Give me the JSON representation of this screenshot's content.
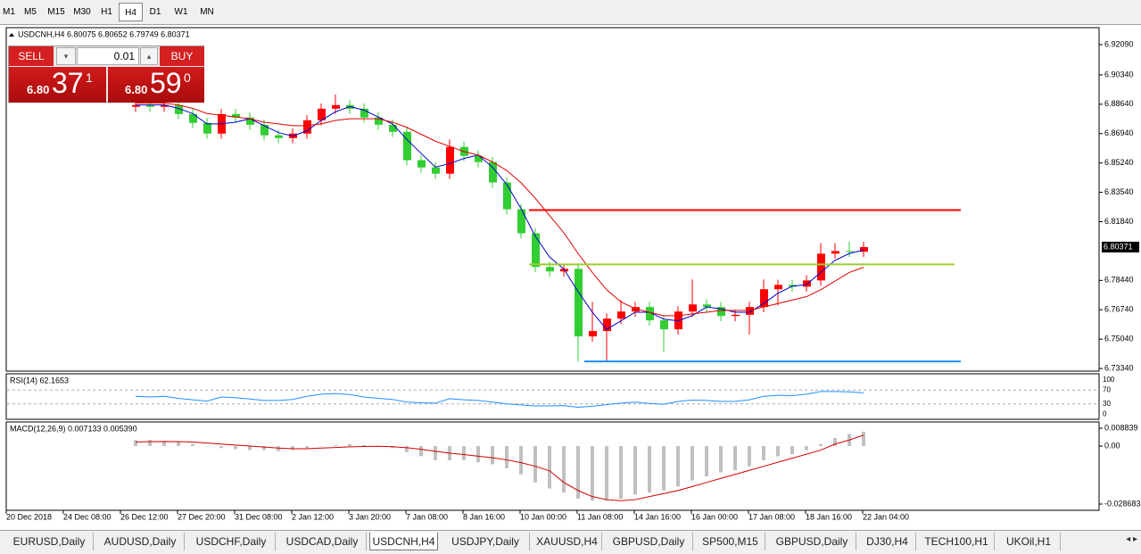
{
  "toolbar": {
    "timeframes": [
      "M1",
      "M5",
      "M15",
      "M30",
      "H1",
      "H4",
      "D1",
      "W1",
      "MN"
    ]
  },
  "trade_panel": {
    "sell": "SELL",
    "buy": "BUY",
    "lot": "0.01",
    "bid": {
      "big": "6.80",
      "pips": "37",
      "frac": "1"
    },
    "ask": {
      "big": "6.80",
      "pips": "59",
      "frac": "0"
    }
  },
  "header": "USDCNH,H4  6.80075 6.80652 6.79749 6.80371",
  "time_labels": [
    "20 Dec 2018",
    "24 Dec 08:00",
    "26 Dec 12:00",
    "27 Dec 20:00",
    "31 Dec 08:00",
    "2 Jan 12:00",
    "3 Jan 20:00",
    "7 Jan 08:00",
    "8 Jan 16:00",
    "10 Jan 00:00",
    "11 Jan 08:00",
    "14 Jan 16:00",
    "16 Jan 00:00",
    "17 Jan 08:00",
    "18 Jan 16:00",
    "22 Jan 04:00"
  ],
  "tabs": [
    "EURUSD,Daily",
    "AUDUSD,Daily",
    "USDCHF,Daily",
    "USDCAD,Daily",
    "USDCNH,H4",
    "USDJPY,Daily",
    "XAUUSD,H4",
    "GBPUSD,Daily",
    "SP500,M15",
    "GBPUSD,Daily",
    "DJ30,H4",
    "TECH100,H1",
    "UKOil,H1"
  ],
  "chart_data": [
    {
      "type": "candlestick",
      "up_color": "#ff0000",
      "down_color": "#32cd32",
      "open": [
        6.8849,
        6.8859,
        6.8849,
        6.8859,
        6.8807,
        6.8756,
        6.8694,
        6.8807,
        6.8787,
        6.8745,
        6.8684,
        6.8668,
        6.8694,
        6.8771,
        6.8838,
        6.8859,
        6.8838,
        6.8787,
        6.8745,
        6.8704,
        6.854,
        6.8498,
        6.8462,
        6.8617,
        6.8565,
        6.8529,
        6.8411,
        6.8256,
        6.8117,
        6.7922,
        6.7896,
        6.7911,
        6.752,
        6.7551,
        6.7623,
        6.7664,
        6.769,
        6.7613,
        6.7561,
        6.7664,
        6.7705,
        6.769,
        6.7638,
        6.7645,
        6.769,
        6.7793,
        6.7818,
        6.7808,
        6.7844,
        6.7999,
        6.8014,
        6.801
      ],
      "high": [
        6.8889,
        6.8889,
        6.8889,
        6.8889,
        6.8837,
        6.8786,
        6.8837,
        6.8837,
        6.8817,
        6.8775,
        6.8714,
        6.8724,
        6.8801,
        6.8868,
        6.892,
        6.8889,
        6.8868,
        6.8817,
        6.8775,
        6.8734,
        6.857,
        6.8528,
        6.866,
        6.8647,
        6.8595,
        6.8559,
        6.8441,
        6.8286,
        6.8147,
        6.7952,
        6.7941,
        6.7941,
        6.772,
        6.7653,
        6.773,
        6.772,
        6.772,
        6.7643,
        6.7694,
        6.785,
        6.7735,
        6.772,
        6.7675,
        6.772,
        6.785,
        6.7848,
        6.7848,
        6.7874,
        6.806,
        6.806,
        6.807,
        6.8067
      ],
      "low": [
        6.8819,
        6.8819,
        6.8819,
        6.8777,
        6.8726,
        6.8664,
        6.8664,
        6.8757,
        6.8715,
        6.8654,
        6.8638,
        6.8638,
        6.8664,
        6.8741,
        6.8808,
        6.8808,
        6.8757,
        6.8715,
        6.8674,
        6.851,
        6.8468,
        6.8432,
        6.8432,
        6.8535,
        6.8499,
        6.8381,
        6.8226,
        6.8087,
        6.7892,
        6.7866,
        6.7866,
        6.7375,
        6.749,
        6.7375,
        6.7593,
        6.7634,
        6.7583,
        6.7431,
        6.7531,
        6.7634,
        6.766,
        6.7608,
        6.7608,
        6.753,
        6.766,
        6.77,
        6.7778,
        6.7778,
        6.7814,
        6.7969,
        6.798,
        6.798
      ],
      "close": [
        6.8859,
        6.8849,
        6.8859,
        6.8807,
        6.8756,
        6.8694,
        6.8807,
        6.8787,
        6.8745,
        6.8684,
        6.8668,
        6.8694,
        6.8771,
        6.8838,
        6.8859,
        6.8838,
        6.8787,
        6.8745,
        6.8704,
        6.854,
        6.8498,
        6.8462,
        6.8617,
        6.8565,
        6.8529,
        6.8411,
        6.8256,
        6.8117,
        6.7922,
        6.7896,
        6.7911,
        6.752,
        6.7551,
        6.7623,
        6.7664,
        6.769,
        6.7613,
        6.7561,
        6.7664,
        6.7705,
        6.769,
        6.7638,
        6.7645,
        6.769,
        6.7793,
        6.7818,
        6.7808,
        6.7844,
        6.7999,
        6.8014,
        6.801,
        6.8037
      ],
      "lines": [
        {
          "color": "#0000cd",
          "values": [
            6.886,
            6.886,
            6.886,
            6.884,
            6.881,
            6.875,
            6.875,
            6.876,
            6.878,
            6.874,
            6.87,
            6.868,
            6.871,
            6.877,
            6.882,
            6.885,
            6.883,
            6.879,
            6.875,
            6.866,
            6.858,
            6.85,
            6.852,
            6.855,
            6.857,
            6.85,
            6.84,
            6.826,
            6.81,
            6.798,
            6.791,
            6.778,
            6.766,
            6.756,
            6.761,
            6.766,
            6.766,
            6.762,
            6.761,
            6.764,
            6.769,
            6.768,
            6.766,
            6.766,
            6.771,
            6.777,
            6.781,
            6.782,
            6.789,
            6.796,
            6.8,
            6.802
          ]
        },
        {
          "color": "#e00000",
          "values": [
            6.887,
            6.887,
            6.887,
            6.886,
            6.884,
            6.881,
            6.88,
            6.879,
            6.878,
            6.876,
            6.875,
            6.874,
            6.874,
            6.875,
            6.877,
            6.878,
            6.878,
            6.878,
            6.876,
            6.873,
            6.869,
            6.865,
            6.862,
            6.859,
            6.857,
            6.853,
            6.848,
            6.841,
            6.832,
            6.822,
            6.812,
            6.8,
            6.789,
            6.779,
            6.772,
            6.768,
            6.766,
            6.764,
            6.764,
            6.765,
            6.766,
            6.767,
            6.767,
            6.767,
            6.769,
            6.771,
            6.773,
            6.775,
            6.779,
            6.784,
            6.789,
            6.792
          ]
        }
      ],
      "levels": [
        {
          "value": 6.8251,
          "color": "#ff0000"
        },
        {
          "value": 6.7937,
          "color": "#9acd32"
        },
        {
          "value": 6.7375,
          "color": "#1e90ff"
        }
      ],
      "last_price": {
        "value": 6.80371,
        "label": "6.80371"
      },
      "ylim": [
        6.7319,
        6.9302
      ],
      "yticks": [
        {
          "value": 6.9209,
          "label": "6.92090"
        },
        {
          "value": 6.9034,
          "label": "6.90340"
        },
        {
          "value": 6.8864,
          "label": "6.88640"
        },
        {
          "value": 6.8694,
          "label": "6.86940"
        },
        {
          "value": 6.8524,
          "label": "6.85240"
        },
        {
          "value": 6.8354,
          "label": "6.83540"
        },
        {
          "value": 6.8184,
          "label": "6.81840"
        },
        {
          "value": 6.7844,
          "label": "6.78440"
        },
        {
          "value": 6.7674,
          "label": "6.76740"
        },
        {
          "value": 6.7504,
          "label": "6.75040"
        },
        {
          "value": 6.7334,
          "label": "6.73340"
        }
      ]
    },
    {
      "type": "line",
      "title": "RSI(14) 62.1653",
      "color": "#1e90ff",
      "values": [
        52,
        50,
        52,
        46,
        42,
        38,
        50,
        48,
        44,
        40,
        40,
        43,
        52,
        58,
        60,
        57,
        50,
        46,
        43,
        35,
        33,
        32,
        45,
        42,
        40,
        35,
        30,
        27,
        24,
        24,
        25,
        20,
        23,
        28,
        32,
        35,
        31,
        29,
        37,
        41,
        40,
        37,
        37,
        42,
        52,
        55,
        54,
        58,
        66,
        66,
        65,
        62.1653
      ],
      "ylim": [
        -15,
        115
      ],
      "yticks": [
        100,
        70,
        30,
        0
      ]
    },
    {
      "type": "bar",
      "title": "MACD(12,26,9) 0.007133 0.005390",
      "color": "#c0c0c0",
      "signal_color": "#d00000",
      "values": [
        0.003,
        0.003,
        0.0025,
        0.002,
        0.001,
        0,
        -0.001,
        -0.0015,
        -0.002,
        -0.002,
        -0.0025,
        -0.002,
        -0.001,
        0,
        0.0005,
        0.001,
        0.0005,
        0,
        -0.001,
        -0.003,
        -0.005,
        -0.007,
        -0.007,
        -0.007,
        -0.008,
        -0.009,
        -0.011,
        -0.014,
        -0.018,
        -0.021,
        -0.023,
        -0.026,
        -0.027,
        -0.027,
        -0.026,
        -0.024,
        -0.023,
        -0.022,
        -0.02,
        -0.017,
        -0.015,
        -0.013,
        -0.012,
        -0.01,
        -0.007,
        -0.005,
        -0.004,
        -0.002,
        0.001,
        0.004,
        0.006,
        0.007133
      ],
      "signal": [
        0.002,
        0.0022,
        0.0023,
        0.0022,
        0.002,
        0.0015,
        0.001,
        0.0005,
        0,
        -0.0005,
        -0.001,
        -0.0013,
        -0.0013,
        -0.001,
        -0.0007,
        -0.0004,
        -0.0002,
        -0.0001,
        -0.0003,
        -0.0008,
        -0.0016,
        -0.0026,
        -0.0035,
        -0.0042,
        -0.005,
        -0.0058,
        -0.0068,
        -0.0082,
        -0.01,
        -0.0122,
        -0.018,
        -0.022,
        -0.025,
        -0.0265,
        -0.027,
        -0.0265,
        -0.025,
        -0.0235,
        -0.022,
        -0.02,
        -0.018,
        -0.016,
        -0.014,
        -0.012,
        -0.01,
        -0.008,
        -0.006,
        -0.004,
        -0.002,
        0.001,
        0.003,
        0.00539
      ],
      "ylim": [
        -0.03177,
        0.01149
      ],
      "yticks": [
        0.008839,
        {
          "value": 0,
          "label": "0.00"
        },
        -0.028683
      ]
    }
  ]
}
